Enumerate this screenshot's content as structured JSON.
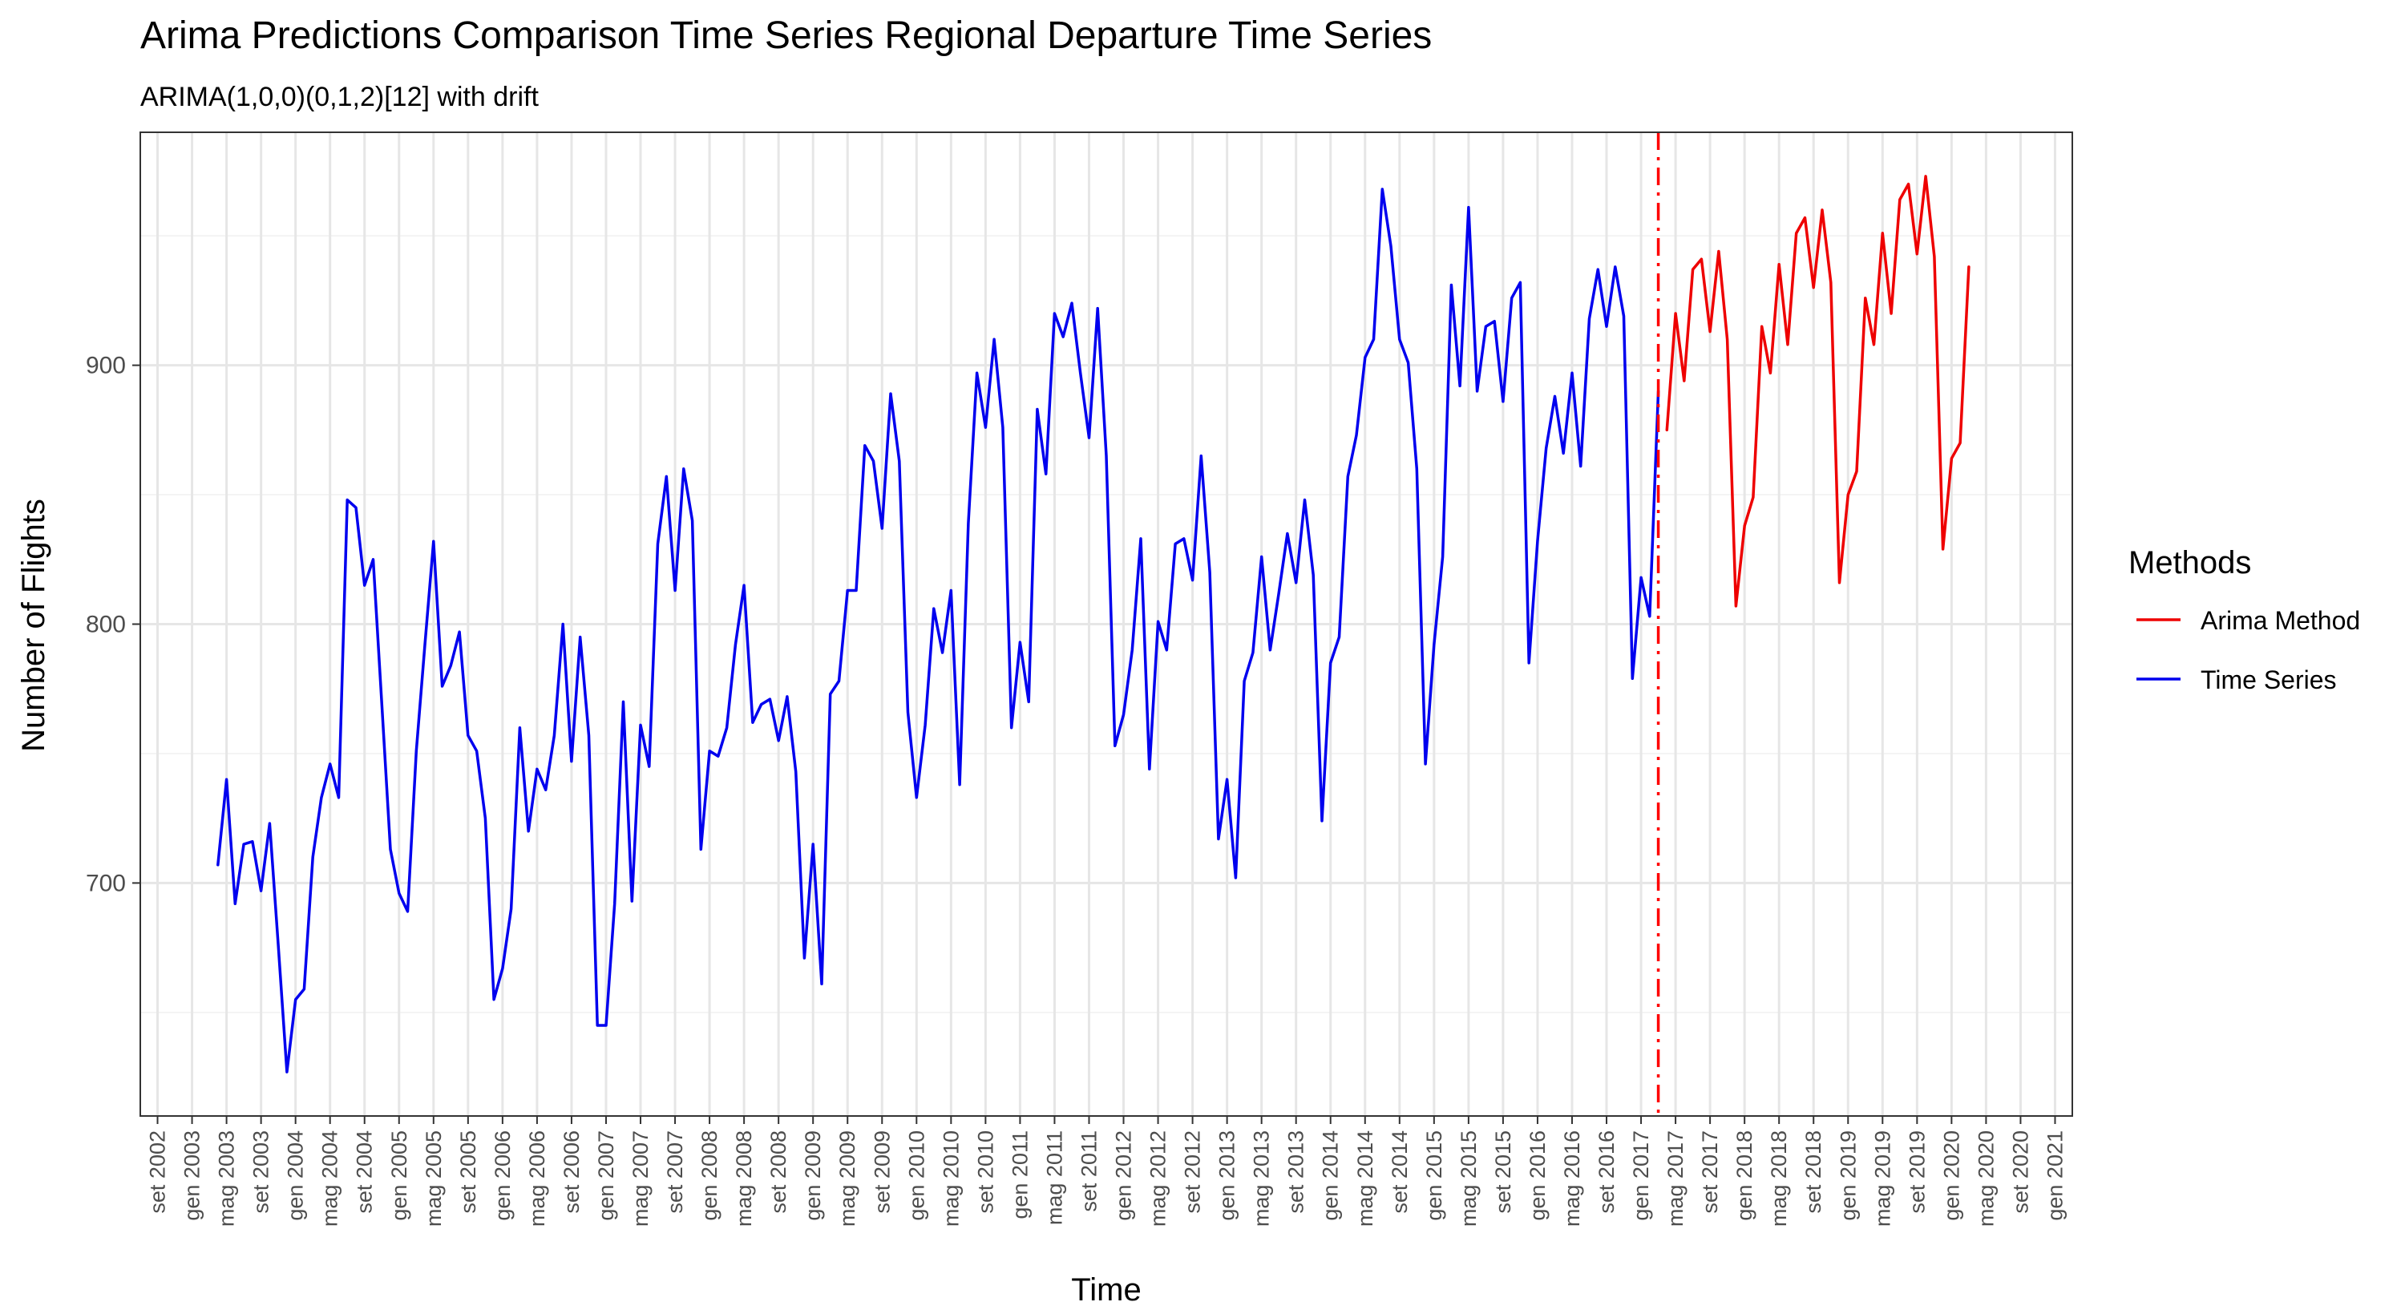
{
  "chart_data": {
    "type": "line",
    "title": "Arima Predictions Comparison Time Series Regional Departure Time Series",
    "subtitle": "ARIMA(1,0,0)(0,1,2)[12] with drift",
    "xlabel": "Time",
    "ylabel": "Number of Flights",
    "ylim": [
      610,
      990
    ],
    "yticks": [
      700,
      800,
      900
    ],
    "xlim": [
      "2002-07",
      "2021-03"
    ],
    "xtick_labels": [
      "set 2002",
      "gen 2003",
      "mag 2003",
      "set 2003",
      "gen 2004",
      "mag 2004",
      "set 2004",
      "gen 2005",
      "mag 2005",
      "set 2005",
      "gen 2006",
      "mag 2006",
      "set 2006",
      "gen 2007",
      "mag 2007",
      "set 2007",
      "gen 2008",
      "mag 2008",
      "set 2008",
      "gen 2009",
      "mag 2009",
      "set 2009",
      "gen 2010",
      "mag 2010",
      "set 2010",
      "gen 2011",
      "mag 2011",
      "set 2011",
      "gen 2012",
      "mag 2012",
      "set 2012",
      "gen 2013",
      "mag 2013",
      "set 2013",
      "gen 2014",
      "mag 2014",
      "set 2014",
      "gen 2015",
      "mag 2015",
      "set 2015",
      "gen 2016",
      "mag 2016",
      "set 2016",
      "gen 2017",
      "mag 2017",
      "set 2017",
      "gen 2018",
      "mag 2018",
      "set 2018",
      "gen 2019",
      "mag 2019",
      "set 2019",
      "gen 2020",
      "mag 2020",
      "set 2020",
      "gen 2021"
    ],
    "xtick_dates": [
      "2002-09",
      "2003-01",
      "2003-05",
      "2003-09",
      "2004-01",
      "2004-05",
      "2004-09",
      "2005-01",
      "2005-05",
      "2005-09",
      "2006-01",
      "2006-05",
      "2006-09",
      "2007-01",
      "2007-05",
      "2007-09",
      "2008-01",
      "2008-05",
      "2008-09",
      "2009-01",
      "2009-05",
      "2009-09",
      "2010-01",
      "2010-05",
      "2010-09",
      "2011-01",
      "2011-05",
      "2011-09",
      "2012-01",
      "2012-05",
      "2012-09",
      "2013-01",
      "2013-05",
      "2013-09",
      "2014-01",
      "2014-05",
      "2014-09",
      "2015-01",
      "2015-05",
      "2015-09",
      "2016-01",
      "2016-05",
      "2016-09",
      "2017-01",
      "2017-05",
      "2017-09",
      "2018-01",
      "2018-05",
      "2018-09",
      "2019-01",
      "2019-05",
      "2019-09",
      "2020-01",
      "2020-05",
      "2020-09",
      "2021-01"
    ],
    "grid": true,
    "legend": {
      "title": "Methods",
      "position": "right"
    },
    "vline": {
      "x": "2017-03",
      "color": "#ff0000",
      "style": "dashdot"
    },
    "series": [
      {
        "name": "Time Series",
        "color": "#0000ee",
        "start": "2003-04",
        "values": [
          707,
          740,
          692,
          715,
          716,
          697,
          723,
          676,
          627,
          655,
          659,
          710,
          733,
          746,
          733,
          848,
          845,
          815,
          825,
          769,
          713,
          696,
          689,
          751,
          792,
          832,
          776,
          784,
          797,
          757,
          751,
          725,
          655,
          667,
          690,
          760,
          720,
          744,
          736,
          757,
          800,
          747,
          795,
          757,
          645,
          645,
          692,
          770,
          693,
          761,
          745,
          831,
          857,
          813,
          860,
          840,
          713,
          751,
          749,
          760,
          792,
          815,
          762,
          769,
          771,
          755,
          772,
          743,
          671,
          715,
          661,
          773,
          778,
          813,
          813,
          869,
          863,
          837,
          889,
          863,
          766,
          733,
          761,
          806,
          789,
          813,
          738,
          839,
          897,
          876,
          910,
          876,
          760,
          793,
          770,
          883,
          858,
          920,
          911,
          924,
          897,
          872,
          922,
          865,
          753,
          765,
          790,
          833,
          744,
          801,
          790,
          831,
          833,
          817,
          865,
          820,
          717,
          740,
          702,
          778,
          789,
          826,
          790,
          812,
          835,
          816,
          848,
          819,
          724,
          785,
          795,
          857,
          873,
          903,
          910,
          968,
          946,
          910,
          901,
          860,
          746,
          792,
          826,
          931,
          892,
          961,
          890,
          915,
          917,
          886,
          926,
          932,
          785,
          832,
          868,
          888,
          866,
          897,
          861,
          918,
          937,
          915,
          938,
          919,
          779,
          818,
          803,
          890
        ]
      },
      {
        "name": "Arima Method",
        "color": "#ee0000",
        "start": "2017-04",
        "values": [
          875,
          920,
          894,
          937,
          941,
          913,
          944,
          910,
          807,
          838,
          849,
          915,
          897,
          939,
          908,
          951,
          957,
          930,
          960,
          932,
          816,
          850,
          859,
          926,
          908,
          951,
          920,
          964,
          970,
          943,
          973,
          942,
          829,
          864,
          870,
          938
        ]
      }
    ]
  }
}
